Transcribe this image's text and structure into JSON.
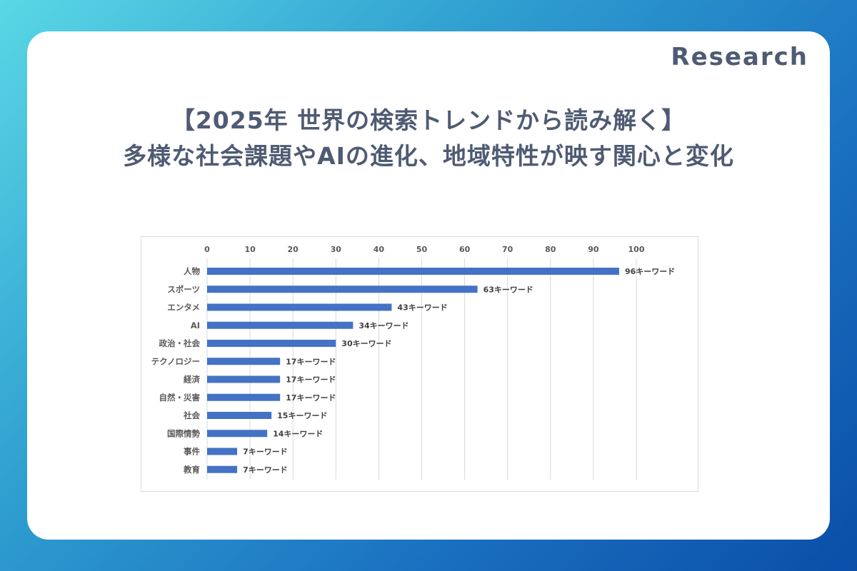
{
  "header": {
    "tag": "Research"
  },
  "title": {
    "line1": "【2025年 世界の検索トレンドから読み解く】",
    "line2": "多様な社会課題やAIの進化、地域特性が映す関心と変化"
  },
  "chart_data": {
    "type": "bar",
    "orientation": "horizontal",
    "categories": [
      "人物",
      "スポーツ",
      "エンタメ",
      "AI",
      "政治・社会",
      "テクノロジー",
      "経済",
      "自然・災害",
      "社会",
      "国際情勢",
      "事件",
      "教育"
    ],
    "values": [
      96,
      63,
      43,
      34,
      30,
      17,
      17,
      17,
      15,
      14,
      7,
      7
    ],
    "data_labels": [
      "96キーワード",
      "63キーワード",
      "43キーワード",
      "34キーワード",
      "30キーワード",
      "17キーワード",
      "17キーワード",
      "17キーワード",
      "15キーワード",
      "14キーワード",
      "7キーワード",
      "7キーワード"
    ],
    "xticks": [
      "0",
      "10",
      "20",
      "30",
      "40",
      "50",
      "60",
      "70",
      "80",
      "90",
      "100"
    ],
    "xlim": [
      0,
      100
    ],
    "xaxis_position": "top",
    "grid": true,
    "bar_color": "#4472c4"
  }
}
